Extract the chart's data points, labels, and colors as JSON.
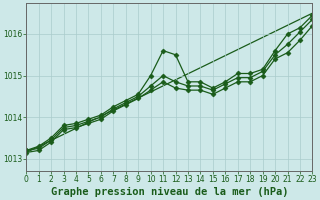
{
  "title": "Graphe pression niveau de la mer (hPa)",
  "background_color": "#cde8e8",
  "grid_color": "#aacccc",
  "line_color": "#1a5c1a",
  "x_min": 0,
  "x_max": 23,
  "y_min": 1012.7,
  "y_max": 1016.75,
  "y_ticks": [
    1013,
    1014,
    1015,
    1016
  ],
  "x_ticks": [
    0,
    1,
    2,
    3,
    4,
    5,
    6,
    7,
    8,
    9,
    10,
    11,
    12,
    13,
    14,
    15,
    16,
    17,
    18,
    19,
    20,
    21,
    22,
    23
  ],
  "series": [
    {
      "x": [
        0,
        1,
        2,
        3,
        4,
        5,
        6,
        7,
        8,
        9,
        10,
        11,
        12,
        13,
        14,
        15,
        16,
        17,
        18,
        19,
        20,
        21,
        22,
        23
      ],
      "y": [
        1013.2,
        1013.3,
        1013.5,
        1013.8,
        1013.85,
        1013.95,
        1014.05,
        1014.25,
        1014.4,
        1014.55,
        1015.0,
        1015.6,
        1015.5,
        1014.85,
        1014.85,
        1014.7,
        1014.85,
        1015.05,
        1015.05,
        1015.15,
        1015.6,
        1016.0,
        1016.15,
        1016.45
      ]
    },
    {
      "x": [
        0,
        1,
        2,
        3,
        4,
        5,
        6,
        7,
        8,
        9,
        10,
        11,
        12,
        13,
        14,
        15,
        16,
        17,
        18,
        19,
        20,
        21,
        22,
        23
      ],
      "y": [
        1013.2,
        1013.25,
        1013.45,
        1013.75,
        1013.8,
        1013.9,
        1014.0,
        1014.2,
        1014.35,
        1014.5,
        1014.75,
        1015.0,
        1014.85,
        1014.75,
        1014.75,
        1014.65,
        1014.8,
        1014.95,
        1014.95,
        1015.1,
        1015.5,
        1015.75,
        1016.05,
        1016.35
      ]
    },
    {
      "x": [
        0,
        1,
        2,
        3,
        4,
        5,
        6,
        7,
        8,
        9,
        10,
        11,
        12,
        13,
        14,
        15,
        16,
        17,
        18,
        19,
        20,
        21,
        22,
        23
      ],
      "y": [
        1013.15,
        1013.2,
        1013.4,
        1013.7,
        1013.75,
        1013.85,
        1013.95,
        1014.15,
        1014.3,
        1014.45,
        1014.65,
        1014.85,
        1014.7,
        1014.65,
        1014.65,
        1014.55,
        1014.7,
        1014.85,
        1014.85,
        1015.0,
        1015.4,
        1015.55,
        1015.85,
        1016.2
      ]
    },
    {
      "x": [
        0,
        23
      ],
      "y": [
        1013.15,
        1016.5
      ]
    }
  ],
  "marker": "D",
  "marker_size": 2.5,
  "linewidth": 0.9,
  "title_fontsize": 7.5,
  "tick_fontsize": 5.5,
  "spine_color": "#666666"
}
